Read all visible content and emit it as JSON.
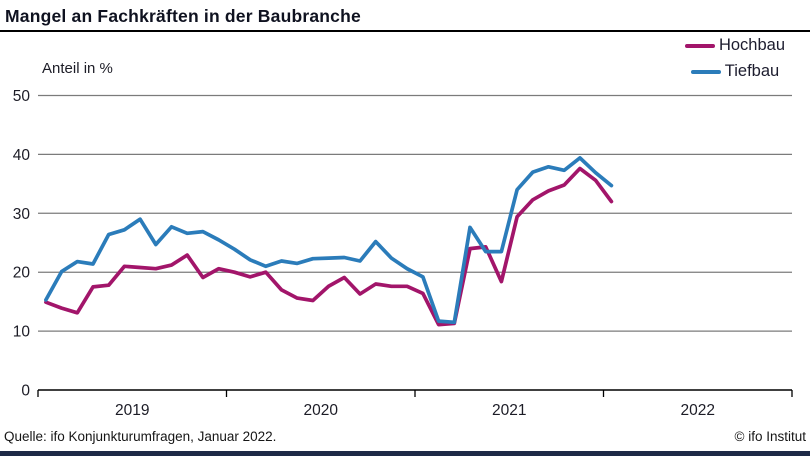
{
  "header": {
    "title": "Mangel an Fachkräften in der Baubranche"
  },
  "legend": {
    "items": [
      {
        "label": "Hochbau",
        "color": "#a2156a"
      },
      {
        "label": "Tiefbau",
        "color": "#2b7cba"
      }
    ]
  },
  "footer": {
    "source": "Quelle: ifo Konjunkturumfragen, Januar 2022.",
    "copyright": "© ifo Institut"
  },
  "colors": {
    "hochbau": "#a2156a",
    "tiefbau": "#2b7cba",
    "grid": "#7b7b7b",
    "axis": "#000000",
    "text": "#1c1c26",
    "bottom_bar": "#1e2a47"
  },
  "chart_data": {
    "type": "line",
    "title": "Mangel an Fachkräften in der Baubranche",
    "ylabel": "Anteil in %",
    "ylim": [
      0,
      50
    ],
    "yticks": [
      0,
      10,
      20,
      30,
      40,
      50
    ],
    "grid": "horizontal",
    "legend_position": "top-right",
    "x_tick_labels": [
      "2019",
      "2020",
      "2021",
      "2022"
    ],
    "x_axis_years_shown": 4,
    "months": [
      "2019-01",
      "2019-02",
      "2019-03",
      "2019-04",
      "2019-05",
      "2019-06",
      "2019-07",
      "2019-08",
      "2019-09",
      "2019-10",
      "2019-11",
      "2019-12",
      "2020-01",
      "2020-02",
      "2020-03",
      "2020-04",
      "2020-05",
      "2020-06",
      "2020-07",
      "2020-08",
      "2020-09",
      "2020-10",
      "2020-11",
      "2020-12",
      "2021-01",
      "2021-02",
      "2021-03",
      "2021-04",
      "2021-05",
      "2021-06",
      "2021-07",
      "2021-08",
      "2021-09",
      "2021-10",
      "2021-11",
      "2021-12",
      "2022-01"
    ],
    "series": [
      {
        "name": "Hochbau",
        "color": "#a2156a",
        "values": [
          14.9,
          13.9,
          13.1,
          17.5,
          17.8,
          21.0,
          20.8,
          20.6,
          21.2,
          22.9,
          19.1,
          20.6,
          20.0,
          19.2,
          20.0,
          17.0,
          15.6,
          15.2,
          17.6,
          19.1,
          16.3,
          18.0,
          17.6,
          17.6,
          16.4,
          11.1,
          11.3,
          24.0,
          24.3,
          18.4,
          29.4,
          32.3,
          33.8,
          34.8,
          37.6,
          35.6,
          32.0
        ]
      },
      {
        "name": "Tiefbau",
        "color": "#2b7cba",
        "values": [
          15.3,
          20.1,
          21.8,
          21.4,
          26.4,
          27.2,
          29.0,
          24.7,
          27.7,
          26.6,
          26.9,
          25.5,
          23.9,
          22.1,
          21.0,
          21.9,
          21.5,
          22.3,
          22.4,
          22.5,
          21.9,
          25.2,
          22.4,
          20.6,
          19.2,
          11.7,
          11.5,
          27.6,
          23.5,
          23.5,
          34.0,
          37.0,
          37.9,
          37.3,
          39.4,
          36.9,
          34.7
        ]
      }
    ]
  }
}
